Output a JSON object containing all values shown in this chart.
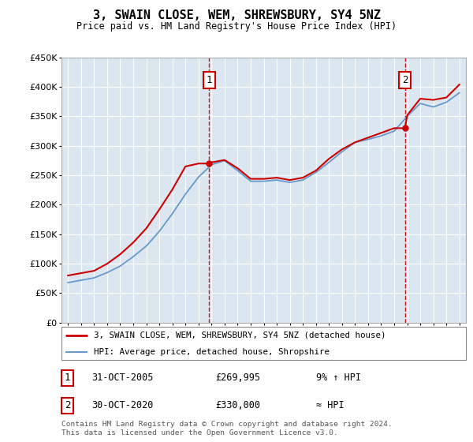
{
  "title": "3, SWAIN CLOSE, WEM, SHREWSBURY, SY4 5NZ",
  "subtitle": "Price paid vs. HM Land Registry's House Price Index (HPI)",
  "bg_color": "#dce6f0",
  "legend_line1": "3, SWAIN CLOSE, WEM, SHREWSBURY, SY4 5NZ (detached house)",
  "legend_line2": "HPI: Average price, detached house, Shropshire",
  "footer": "Contains HM Land Registry data © Crown copyright and database right 2024.\nThis data is licensed under the Open Government Licence v3.0.",
  "table_rows": [
    {
      "marker": "1",
      "date": "31-OCT-2005",
      "price": "£269,995",
      "note": "9% ↑ HPI"
    },
    {
      "marker": "2",
      "date": "30-OCT-2020",
      "price": "£330,000",
      "note": "≈ HPI"
    }
  ],
  "marker1_x": 2005.83,
  "marker1_y": 269995,
  "marker2_x": 2020.83,
  "marker2_y": 330000,
  "ylim": [
    0,
    450000
  ],
  "xlim": [
    1994.5,
    2025.5
  ],
  "red_color": "#cc0000",
  "blue_color": "#6699cc",
  "grid_color": "#ffffff",
  "hpi_years": [
    1995,
    1996,
    1997,
    1998,
    1999,
    2000,
    2001,
    2002,
    2003,
    2004,
    2005,
    2006,
    2007,
    2008,
    2009,
    2010,
    2011,
    2012,
    2013,
    2014,
    2015,
    2016,
    2017,
    2018,
    2019,
    2020,
    2021,
    2022,
    2023,
    2024,
    2025
  ],
  "hpi_values": [
    68000,
    72000,
    76000,
    85000,
    96000,
    112000,
    130000,
    155000,
    185000,
    218000,
    247000,
    268000,
    275000,
    258000,
    240000,
    240000,
    242000,
    238000,
    242000,
    255000,
    272000,
    290000,
    306000,
    311000,
    317000,
    325000,
    350000,
    372000,
    366000,
    374000,
    390000
  ],
  "property_years": [
    1995,
    1996,
    1997,
    1998,
    1999,
    2000,
    2001,
    2002,
    2003,
    2004,
    2005,
    2005.83,
    2006,
    2007,
    2008,
    2009,
    2010,
    2011,
    2012,
    2013,
    2014,
    2015,
    2016,
    2017,
    2018,
    2019,
    2020,
    2020.83,
    2021,
    2022,
    2023,
    2024,
    2025
  ],
  "property_values": [
    80000,
    84000,
    88000,
    100000,
    116000,
    136000,
    160000,
    192000,
    226000,
    265000,
    269995,
    269995,
    272000,
    276000,
    262000,
    244000,
    244000,
    246000,
    242000,
    246000,
    258000,
    278000,
    294000,
    306000,
    314000,
    322000,
    330000,
    330000,
    352000,
    380000,
    378000,
    382000,
    404000
  ]
}
